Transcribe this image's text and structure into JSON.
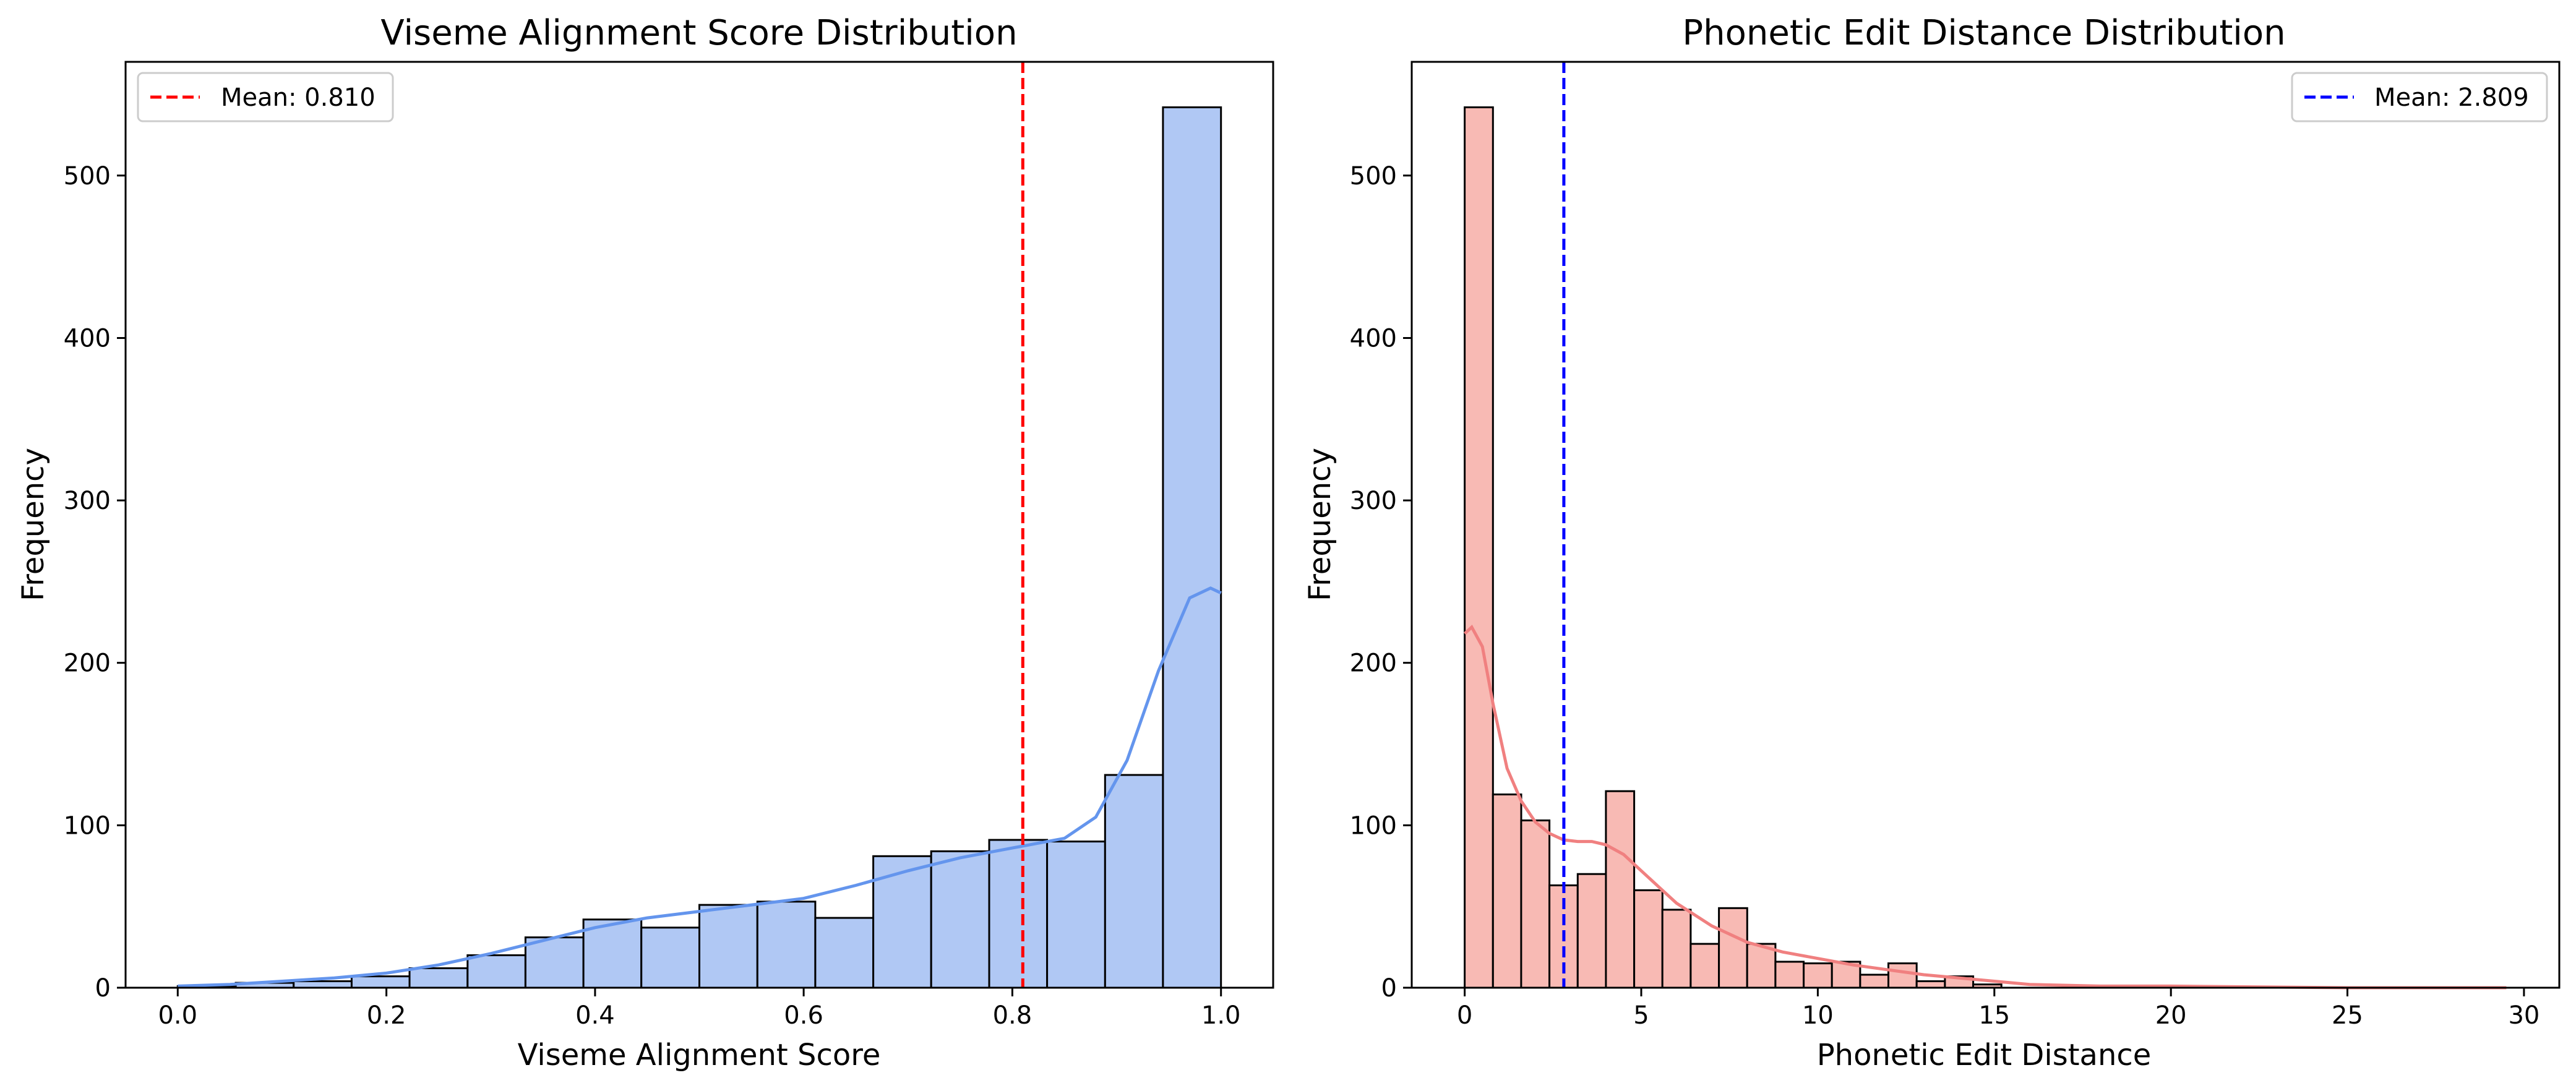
{
  "chart_data": [
    {
      "type": "histogram",
      "title": "Viseme Alignment Score Distribution",
      "xlabel": "Viseme Alignment Score",
      "ylabel": "Frequency",
      "xlim": [
        -0.05,
        1.05
      ],
      "ylim": [
        0,
        570
      ],
      "xticks": [
        0.0,
        0.2,
        0.4,
        0.6,
        0.8,
        1.0
      ],
      "xtick_labels": [
        "0.0",
        "0.2",
        "0.4",
        "0.6",
        "0.8",
        "1.0"
      ],
      "yticks": [
        0,
        100,
        200,
        300,
        400,
        500
      ],
      "ytick_labels": [
        "0",
        "100",
        "200",
        "300",
        "400",
        "500"
      ],
      "bin_edges": [
        0.0,
        0.0556,
        0.1111,
        0.1667,
        0.2222,
        0.2778,
        0.3333,
        0.3889,
        0.4444,
        0.5,
        0.5556,
        0.6111,
        0.6667,
        0.7222,
        0.7778,
        0.8333,
        0.8889,
        0.9444,
        1.0
      ],
      "counts": [
        1,
        3,
        4,
        7,
        12,
        20,
        31,
        42,
        37,
        51,
        53,
        43,
        81,
        84,
        91,
        90,
        131,
        542
      ],
      "kde": {
        "x": [
          0.0,
          0.05,
          0.1,
          0.15,
          0.2,
          0.25,
          0.3,
          0.35,
          0.4,
          0.45,
          0.5,
          0.55,
          0.6,
          0.65,
          0.7,
          0.75,
          0.8,
          0.85,
          0.88,
          0.91,
          0.94,
          0.97,
          0.99,
          1.0
        ],
        "y": [
          1,
          2,
          4,
          6,
          9,
          14,
          21,
          29,
          37,
          43,
          47,
          51,
          55,
          63,
          72,
          80,
          86,
          92,
          105,
          140,
          195,
          240,
          246,
          243
        ]
      },
      "bar_color": "#b0c8f4",
      "kde_color": "#6495ed",
      "mean": 0.81,
      "mean_color": "#ff0000",
      "legend": {
        "label": "Mean: 0.810",
        "position": "upper-left"
      },
      "grid": false
    },
    {
      "type": "histogram",
      "title": "Phonetic Edit Distance Distribution",
      "xlabel": "Phonetic Edit Distance",
      "ylabel": "Frequency",
      "xlim": [
        -1.5,
        31
      ],
      "ylim": [
        0,
        570
      ],
      "xticks": [
        0,
        5,
        10,
        15,
        20,
        25,
        30
      ],
      "xtick_labels": [
        "0",
        "5",
        "10",
        "15",
        "20",
        "25",
        "30"
      ],
      "yticks": [
        0,
        100,
        200,
        300,
        400,
        500
      ],
      "ytick_labels": [
        "0",
        "100",
        "200",
        "300",
        "400",
        "500"
      ],
      "bin_edges": [
        0,
        0.8,
        1.6,
        2.4,
        3.2,
        4.0,
        4.8,
        5.6,
        6.4,
        7.2,
        8.0,
        8.8,
        9.6,
        10.4,
        11.2,
        12.0,
        12.8,
        13.6,
        14.4,
        15.2
      ],
      "counts": [
        542,
        119,
        103,
        63,
        70,
        121,
        60,
        48,
        27,
        49,
        27,
        16,
        15,
        16,
        8,
        15,
        4,
        7,
        2
      ],
      "kde": {
        "x": [
          0,
          0.2,
          0.5,
          0.8,
          1.2,
          1.6,
          2.0,
          2.4,
          2.8,
          3.2,
          3.6,
          4.0,
          4.5,
          5.0,
          5.5,
          6.0,
          7.0,
          8.0,
          9.0,
          10.0,
          11.0,
          12.0,
          13.0,
          14.0,
          15.0,
          16.0,
          18.0,
          20.0,
          25.0,
          29.5
        ],
        "y": [
          218,
          222,
          210,
          175,
          135,
          115,
          102,
          95,
          91,
          90,
          90,
          88,
          82,
          72,
          62,
          52,
          38,
          28,
          22,
          18,
          14,
          11,
          8,
          6,
          4,
          2,
          1,
          1,
          0,
          0
        ]
      },
      "bar_color": "#f8bab4",
      "kde_color": "#f08080",
      "mean": 2.809,
      "mean_color": "#0000ff",
      "legend": {
        "label": "Mean: 2.809",
        "position": "upper-right"
      },
      "grid": false
    }
  ]
}
